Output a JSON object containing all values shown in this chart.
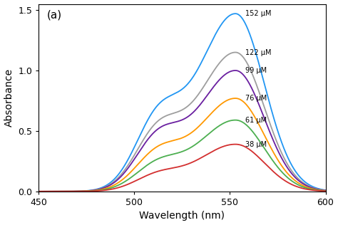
{
  "title_label": "(a)",
  "xlabel": "Wavelength (nm)",
  "ylabel": "Absorbance",
  "xlim": [
    450,
    600
  ],
  "ylim": [
    0,
    1.55
  ],
  "yticks": [
    0.0,
    0.5,
    1.0,
    1.5
  ],
  "xticks": [
    450,
    500,
    550,
    600
  ],
  "peak_wavelength": 553,
  "shoulder_wavelength": 512,
  "series": [
    {
      "label": "152 μM",
      "peak": 1.47,
      "color": "#2196F3",
      "shoulder_ratio": 0.36
    },
    {
      "label": "122 μM",
      "peak": 1.15,
      "color": "#9E9E9E",
      "shoulder_ratio": 0.38
    },
    {
      "label": "99 μM",
      "peak": 1.0,
      "color": "#6A1FA0",
      "shoulder_ratio": 0.39
    },
    {
      "label": "76 μM",
      "peak": 0.77,
      "color": "#FF9800",
      "shoulder_ratio": 0.36
    },
    {
      "label": "61 μM",
      "peak": 0.59,
      "color": "#4CAF50",
      "shoulder_ratio": 0.33
    },
    {
      "label": "38 μM",
      "peak": 0.39,
      "color": "#D32F2F",
      "shoulder_ratio": 0.3
    }
  ],
  "background_color": "#ffffff",
  "figsize": [
    4.74,
    3.16
  ],
  "dpi": 100
}
